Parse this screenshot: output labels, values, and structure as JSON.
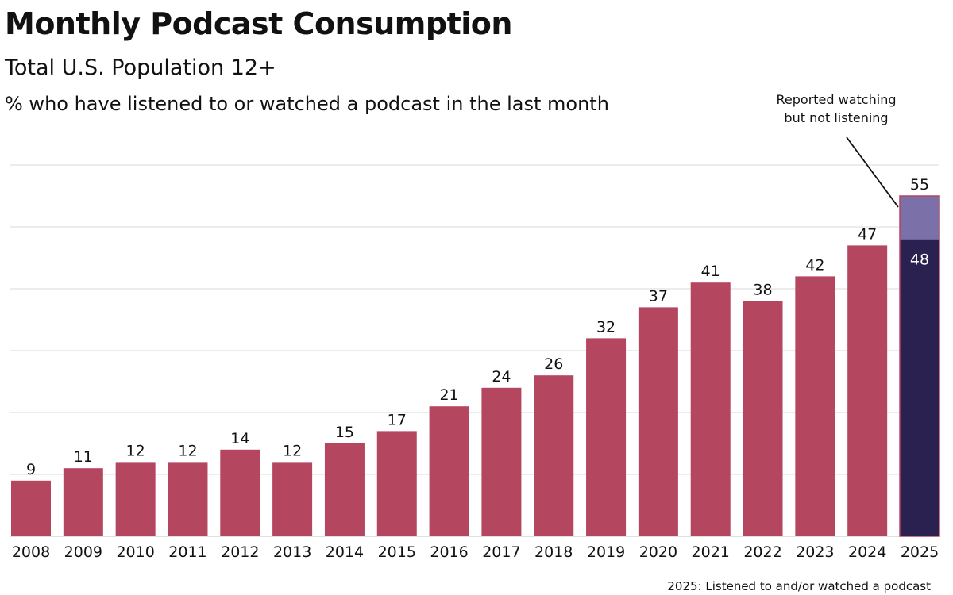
{
  "title": "Monthly Podcast Consumption",
  "subtitle": "Total U.S. Population 12+",
  "description": "% who have listened to or watched a podcast in the last month",
  "footnote": "2025: Listened to and/or watched a podcast",
  "colors": {
    "main_bar": "#b5465f",
    "listened_2025": "#2b2150",
    "watching_only_2025": "#7b70a8",
    "grid": "#d9d9d9"
  },
  "chart_data": {
    "type": "bar",
    "categories": [
      "2008",
      "2009",
      "2010",
      "2011",
      "2012",
      "2013",
      "2014",
      "2015",
      "2016",
      "2017",
      "2018",
      "2019",
      "2020",
      "2021",
      "2022",
      "2023",
      "2024",
      "2025"
    ],
    "values": [
      9,
      11,
      12,
      12,
      14,
      12,
      15,
      17,
      21,
      24,
      26,
      32,
      37,
      41,
      38,
      42,
      47,
      55
    ],
    "stacked_2025": {
      "listened": 48,
      "watching_not_listening": 7,
      "total": 55
    },
    "annotation": [
      "Reported watching",
      "but not listening"
    ],
    "ylim": [
      0,
      60
    ],
    "grid": true
  }
}
